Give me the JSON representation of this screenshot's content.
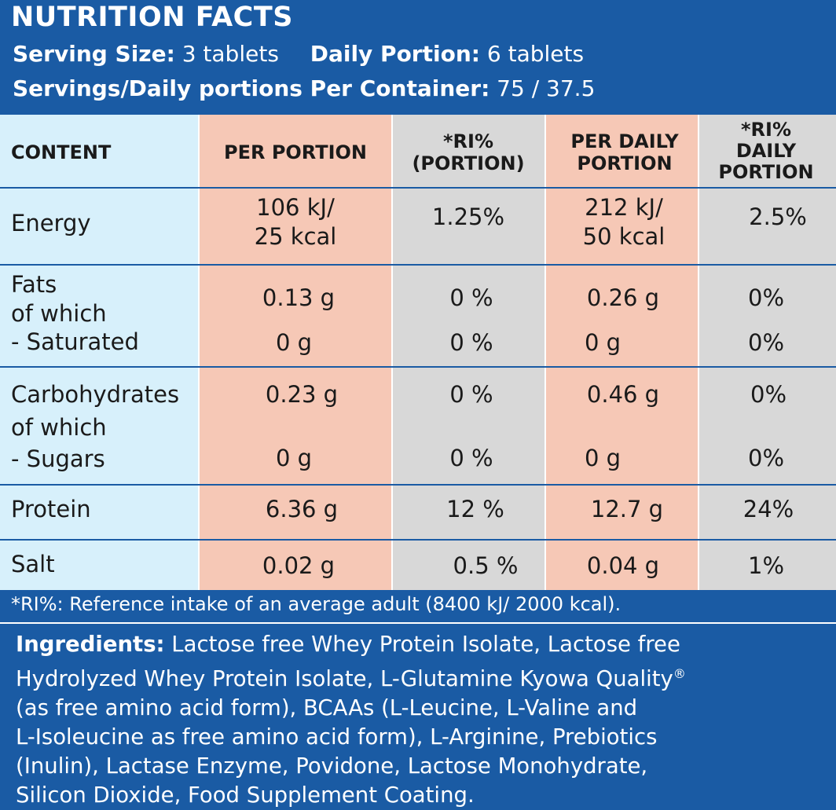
{
  "header": {
    "title": "NUTRITION FACTS",
    "serving_size_label": "Serving Size:",
    "serving_size_value": "3 tablets",
    "daily_portion_label": "Daily Portion:",
    "daily_portion_value": "6 tablets",
    "servings_label": "Servings/Daily portions Per Container:",
    "servings_value": "75 / 37.5"
  },
  "table": {
    "columns": [
      "CONTENT",
      "PER PORTION",
      "*RI%",
      "(PORTION)",
      "PER DAILY",
      "PORTION",
      "*RI%",
      "DAILY",
      "PORTION"
    ],
    "energy": {
      "label": "Energy",
      "per_portion_1": "106 kJ/",
      "per_portion_2": "25 kcal",
      "ri_portion": "1.25%",
      "per_daily_1": "212 kJ/",
      "per_daily_2": "50 kcal",
      "ri_daily": "2.5%"
    },
    "fats": {
      "label_1": "Fats",
      "label_2": "of which",
      "label_3": "- Saturated",
      "per_portion": "0.13 g",
      "ri_portion": "0 %",
      "per_daily": "0.26 g",
      "ri_daily": "0%",
      "sat_per_portion": "0 g",
      "sat_ri_portion": "0 %",
      "sat_per_daily": "0 g",
      "sat_ri_daily": "0%"
    },
    "carbs": {
      "label_1": "Carbohydrates",
      "label_2": "of which",
      "label_3": " - Sugars",
      "per_portion": "0.23 g",
      "ri_portion": "0 %",
      "per_daily": "0.46 g",
      "ri_daily": "0%",
      "sug_per_portion": "0 g",
      "sug_ri_portion": "0 %",
      "sug_per_daily": "0 g",
      "sug_ri_daily": "0%"
    },
    "protein": {
      "label": "Protein",
      "per_portion": "6.36 g",
      "ri_portion": "12 %",
      "per_daily": "12.7 g",
      "ri_daily": "24%"
    },
    "salt": {
      "label": "Salt",
      "per_portion": "0.02 g",
      "ri_portion": "0.5 %",
      "per_daily": "0.04  g",
      "ri_daily": "1%"
    }
  },
  "footnote": "*RI%:  Reference intake of an average adult (8400 kJ/ 2000 kcal).",
  "ingredients": {
    "label": "Ingredients:",
    "line1": " Lactose free Whey Protein Isolate, Lactose free",
    "line2": "Hydrolyzed Whey Protein Isolate, L-Glutamine Kyowa Quality",
    "registered": "®",
    "line3": "(as free amino acid form), BCAAs (L-Leucine, L-Valine and",
    "line4": "L-Isoleucine as free amino acid form), L-Arginine, Prebiotics",
    "line5": "(Inulin), Lactase Enzyme, Povidone, Lactose Monohydrate,",
    "line6": "Silicon Dioxide, Food Supplement Coating."
  }
}
